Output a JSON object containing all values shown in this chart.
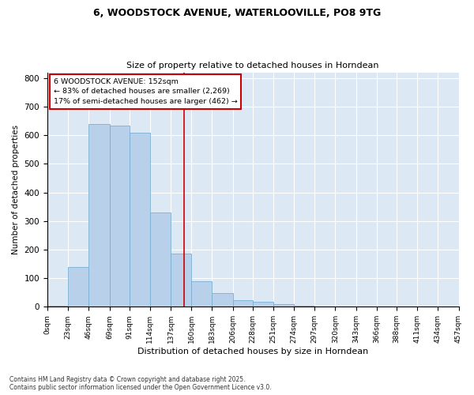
{
  "title": "6, WOODSTOCK AVENUE, WATERLOOVILLE, PO8 9TG",
  "subtitle": "Size of property relative to detached houses in Horndean",
  "xlabel": "Distribution of detached houses by size in Horndean",
  "ylabel": "Number of detached properties",
  "bins": [
    "0sqm",
    "23sqm",
    "46sqm",
    "69sqm",
    "91sqm",
    "114sqm",
    "137sqm",
    "160sqm",
    "183sqm",
    "206sqm",
    "228sqm",
    "251sqm",
    "274sqm",
    "297sqm",
    "320sqm",
    "343sqm",
    "366sqm",
    "388sqm",
    "411sqm",
    "434sqm",
    "457sqm"
  ],
  "bin_edges": [
    0,
    23,
    46,
    69,
    91,
    114,
    137,
    160,
    183,
    206,
    228,
    251,
    274,
    297,
    320,
    343,
    366,
    388,
    411,
    434,
    457
  ],
  "counts": [
    5,
    140,
    640,
    635,
    610,
    330,
    185,
    90,
    48,
    22,
    18,
    10,
    5,
    0,
    0,
    0,
    0,
    0,
    0,
    0
  ],
  "property_size": 152,
  "annotation_title": "6 WOODSTOCK AVENUE: 152sqm",
  "annotation_line1": "← 83% of detached houses are smaller (2,269)",
  "annotation_line2": "17% of semi-detached houses are larger (462) →",
  "bar_color": "#b8d0ea",
  "bar_edge_color": "#7aafd4",
  "line_color": "#cc0000",
  "annotation_box_color": "#cc0000",
  "bg_color": "#dde8f5",
  "footnote1": "Contains HM Land Registry data © Crown copyright and database right 2025.",
  "footnote2": "Contains public sector information licensed under the Open Government Licence v3.0.",
  "ylim": [
    0,
    820
  ],
  "yticks": [
    0,
    100,
    200,
    300,
    400,
    500,
    600,
    700,
    800
  ]
}
